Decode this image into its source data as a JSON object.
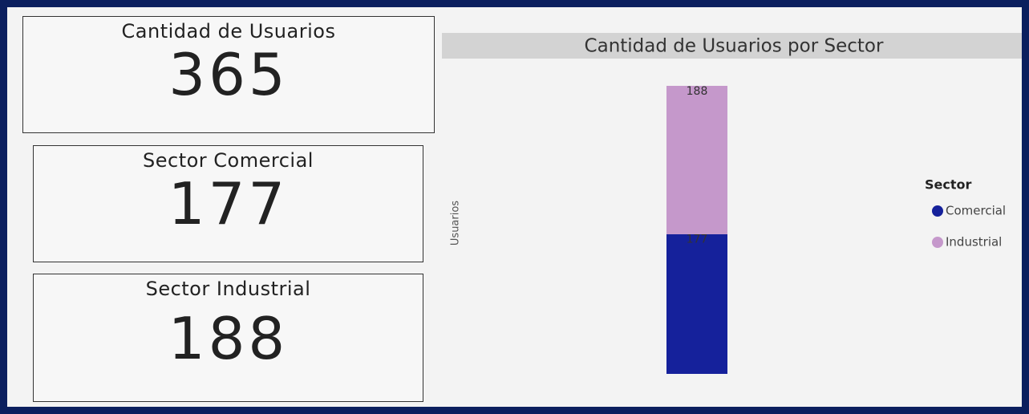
{
  "cards": [
    {
      "title": "Cantidad de Usuarios",
      "value": 365
    },
    {
      "title": "Sector Comercial",
      "value": 177
    },
    {
      "title": "Sector Industrial",
      "value": 188
    }
  ],
  "chart_data": {
    "type": "stacked_bar",
    "title": "Cantidad de Usuarios por Sector",
    "y_label": "Usuarios",
    "categories": [
      null
    ],
    "ylim": [
      0,
      365
    ],
    "legend_title": "Sector",
    "legend": "right",
    "series": [
      {
        "name": "Comercial",
        "color": "#15219b",
        "values": [
          177
        ]
      },
      {
        "name": "Industrial",
        "color": "#c598cb",
        "values": [
          188
        ]
      }
    ]
  }
}
